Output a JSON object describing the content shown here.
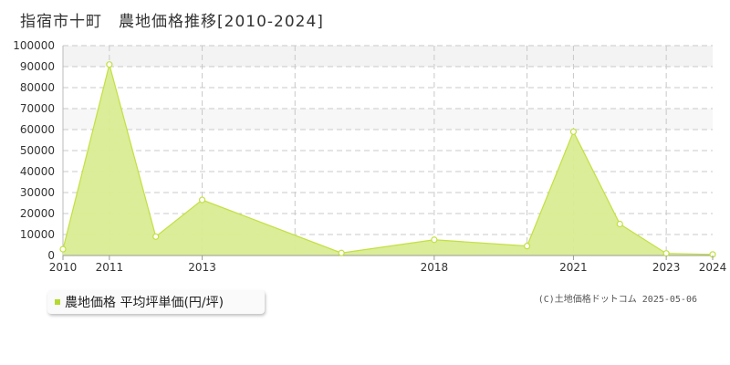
{
  "title": "指宿市十町　農地価格推移[2010-2024]",
  "legend": {
    "label": "農地価格 平均坪単価(円/坪)",
    "color": "#b5d930"
  },
  "copyright": "(C)土地価格ドットコム 2025-05-06",
  "colors": {
    "fill": "#d9ec92",
    "line": "#c2e040",
    "grid": "#c8c8c8"
  },
  "chart_data": {
    "type": "area",
    "x": [
      2010,
      2011,
      2012,
      2013,
      2016,
      2018,
      2020,
      2021,
      2022,
      2023,
      2024
    ],
    "values": [
      3000,
      91000,
      9000,
      26500,
      1200,
      7500,
      4500,
      59000,
      15000,
      1000,
      500
    ],
    "xlim": [
      2010,
      2024
    ],
    "ylim": [
      0,
      100000
    ],
    "yticks": [
      0,
      10000,
      20000,
      30000,
      40000,
      50000,
      60000,
      70000,
      80000,
      90000,
      100000
    ],
    "xtick_labels": [
      {
        "value": 2010,
        "label": "2010"
      },
      {
        "value": 2011,
        "label": "2011"
      },
      {
        "value": 2013,
        "label": "2013"
      },
      {
        "value": 2018,
        "label": "2018"
      },
      {
        "value": 2021,
        "label": "2021"
      },
      {
        "value": 2023,
        "label": "2023"
      },
      {
        "value": 2024,
        "label": "2024"
      }
    ],
    "vgrid": [
      2011,
      2013,
      2015,
      2018,
      2020,
      2021,
      2023
    ],
    "grid": true
  }
}
